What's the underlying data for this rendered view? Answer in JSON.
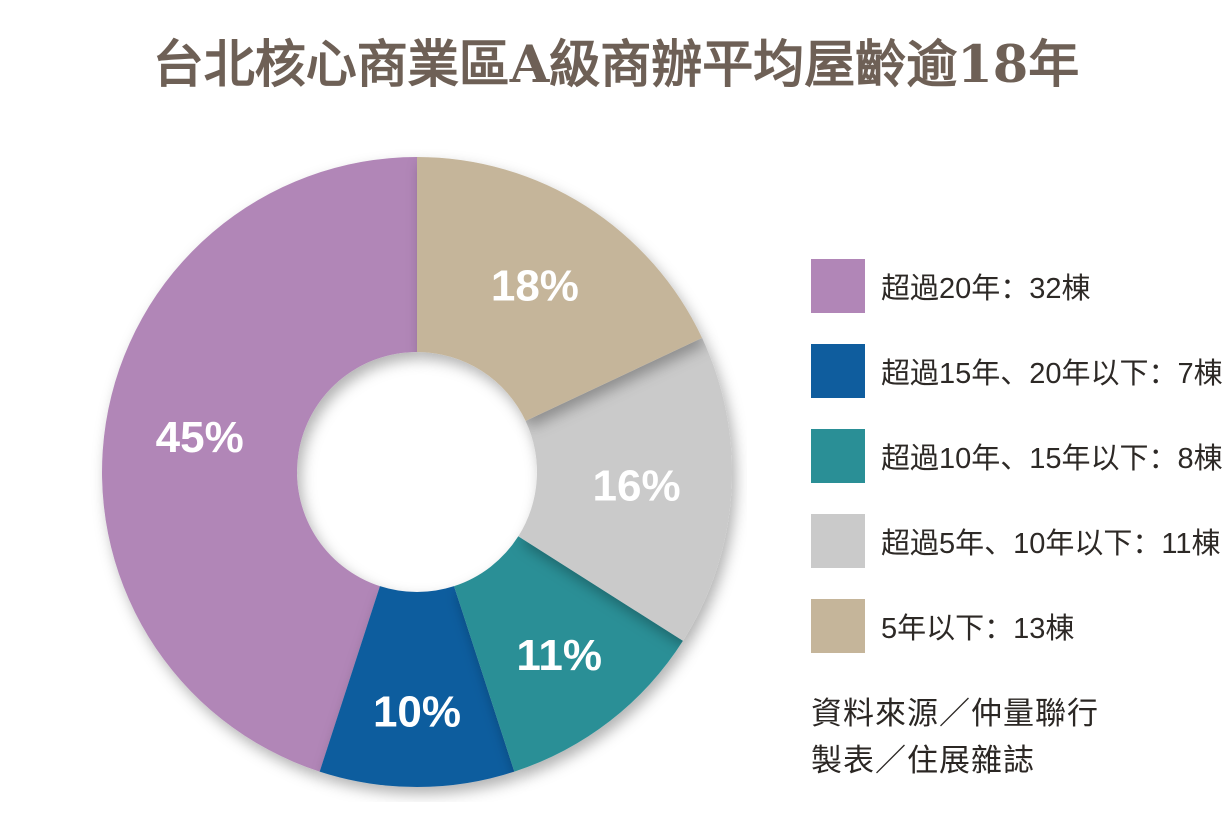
{
  "title": "台北核心商業區A級商辦平均屋齡逾18年",
  "chart_data": {
    "type": "pie",
    "subtype": "donut",
    "title": "台北核心商業區A級商辦平均屋齡逾18年",
    "unit": "棟",
    "labels_inside": true,
    "legend_position": "right",
    "direction": "45% slice on left, slices run counter-clockwise from top in legend order",
    "segments": [
      {
        "label": "超過20年：32棟",
        "category": "超過20年",
        "count": 32,
        "value": 45,
        "percent_label": "45%",
        "color": "#b186b7"
      },
      {
        "label": "超過15年、20年以下：7棟",
        "category": "超過15年、20年以下",
        "count": 7,
        "value": 10,
        "percent_label": "10%",
        "color": "#0f5d9e"
      },
      {
        "label": "超過10年、15年以下：8棟",
        "category": "超過10年、15年以下",
        "count": 8,
        "value": 11,
        "percent_label": "11%",
        "color": "#2a8f96"
      },
      {
        "label": "超過5年、10年以下：11棟",
        "category": "超過5年、10年以下",
        "count": 11,
        "value": 16,
        "percent_label": "16%",
        "color": "#cacaca"
      },
      {
        "label": "5年以下：13棟",
        "category": "5年以下",
        "count": 13,
        "value": 18,
        "percent_label": "18%",
        "color": "#c5b59a"
      }
    ]
  },
  "source": {
    "line1": "資料來源／仲量聯行",
    "line2": "製表／住展雜誌"
  },
  "colors": {
    "background": "#ffffff",
    "title_text": "#6e6056",
    "legend_text": "#2d2926",
    "source_text": "#2b2724",
    "percent_label_text": "#ffffff"
  }
}
